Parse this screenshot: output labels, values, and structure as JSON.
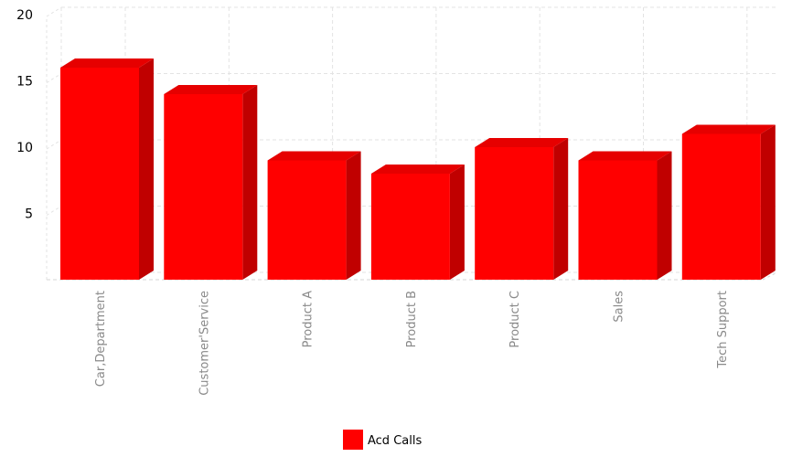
{
  "chart_data": {
    "type": "bar",
    "style": "3d",
    "categories": [
      "Car,Department",
      "Customer'Service",
      "Product A",
      "Product B",
      "Product C",
      "Sales",
      "Tech Support"
    ],
    "series": [
      {
        "name": "Acd Calls",
        "values": [
          16,
          14,
          9,
          8,
          10,
          9,
          11
        ],
        "color": "#ff0000"
      }
    ],
    "yticks": [
      5,
      10,
      15,
      20
    ],
    "ylim": [
      0,
      20
    ],
    "grid": true,
    "legend": "bottom-center",
    "colors": {
      "front": "#ff0000",
      "top": "#e60000",
      "side": "#c00000",
      "grid": "#e3e3e3",
      "axis": "#d6d6d6"
    }
  }
}
